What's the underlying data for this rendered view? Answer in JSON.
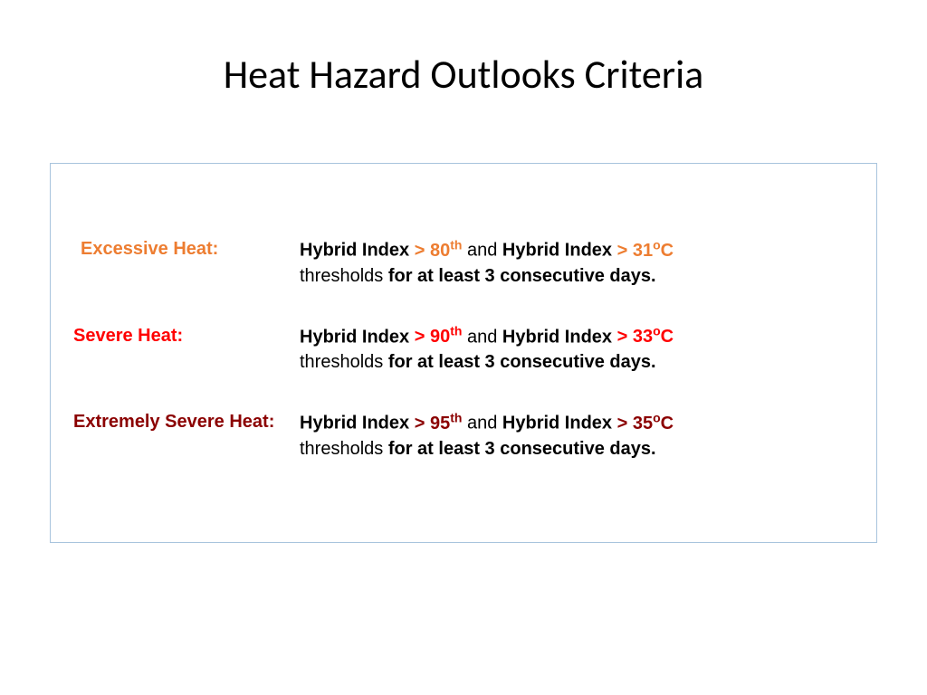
{
  "title": "Heat Hazard Outlooks Criteria",
  "criteria": [
    {
      "label": "Excessive Heat:",
      "label_color": "#ed7d31",
      "threshold_color": "#ed7d31",
      "index_label": "Hybrid Index",
      "percentile_operator": "> ",
      "percentile_value": "80",
      "percentile_suffix": "th",
      "connector": " and ",
      "temp_operator": "> ",
      "temp_value": "31",
      "temp_unit_sup": "o",
      "temp_unit": "C",
      "condition_prefix": "thresholds ",
      "condition_bold": "for at least 3 consecutive days."
    },
    {
      "label": "Severe Heat:",
      "label_color": "#ff0000",
      "threshold_color": "#ff0000",
      "index_label": "Hybrid Index",
      "percentile_operator": "> ",
      "percentile_value": "90",
      "percentile_suffix": "th",
      "connector": " and ",
      "temp_operator": "> ",
      "temp_value": "33",
      "temp_unit_sup": "o",
      "temp_unit": "C",
      "condition_prefix": "thresholds ",
      "condition_bold": "for at least 3 consecutive days."
    },
    {
      "label": "Extremely Severe Heat:",
      "label_color": "#8b0000",
      "threshold_color": "#8b0000",
      "index_label": "Hybrid Index",
      "percentile_operator": "> ",
      "percentile_value": "95",
      "percentile_suffix": "th",
      "connector": "  and ",
      "temp_operator": "> ",
      "temp_value": "35",
      "temp_unit_sup": "o",
      "temp_unit": "C",
      "condition_prefix": "thresholds ",
      "condition_bold": "for at least 3 consecutive days."
    }
  ],
  "styling": {
    "background_color": "#ffffff",
    "title_color": "#000000",
    "title_fontsize": 44,
    "body_fontsize": 20,
    "border_color": "#a8c4dd",
    "text_color": "#000000",
    "label_width": 250
  }
}
